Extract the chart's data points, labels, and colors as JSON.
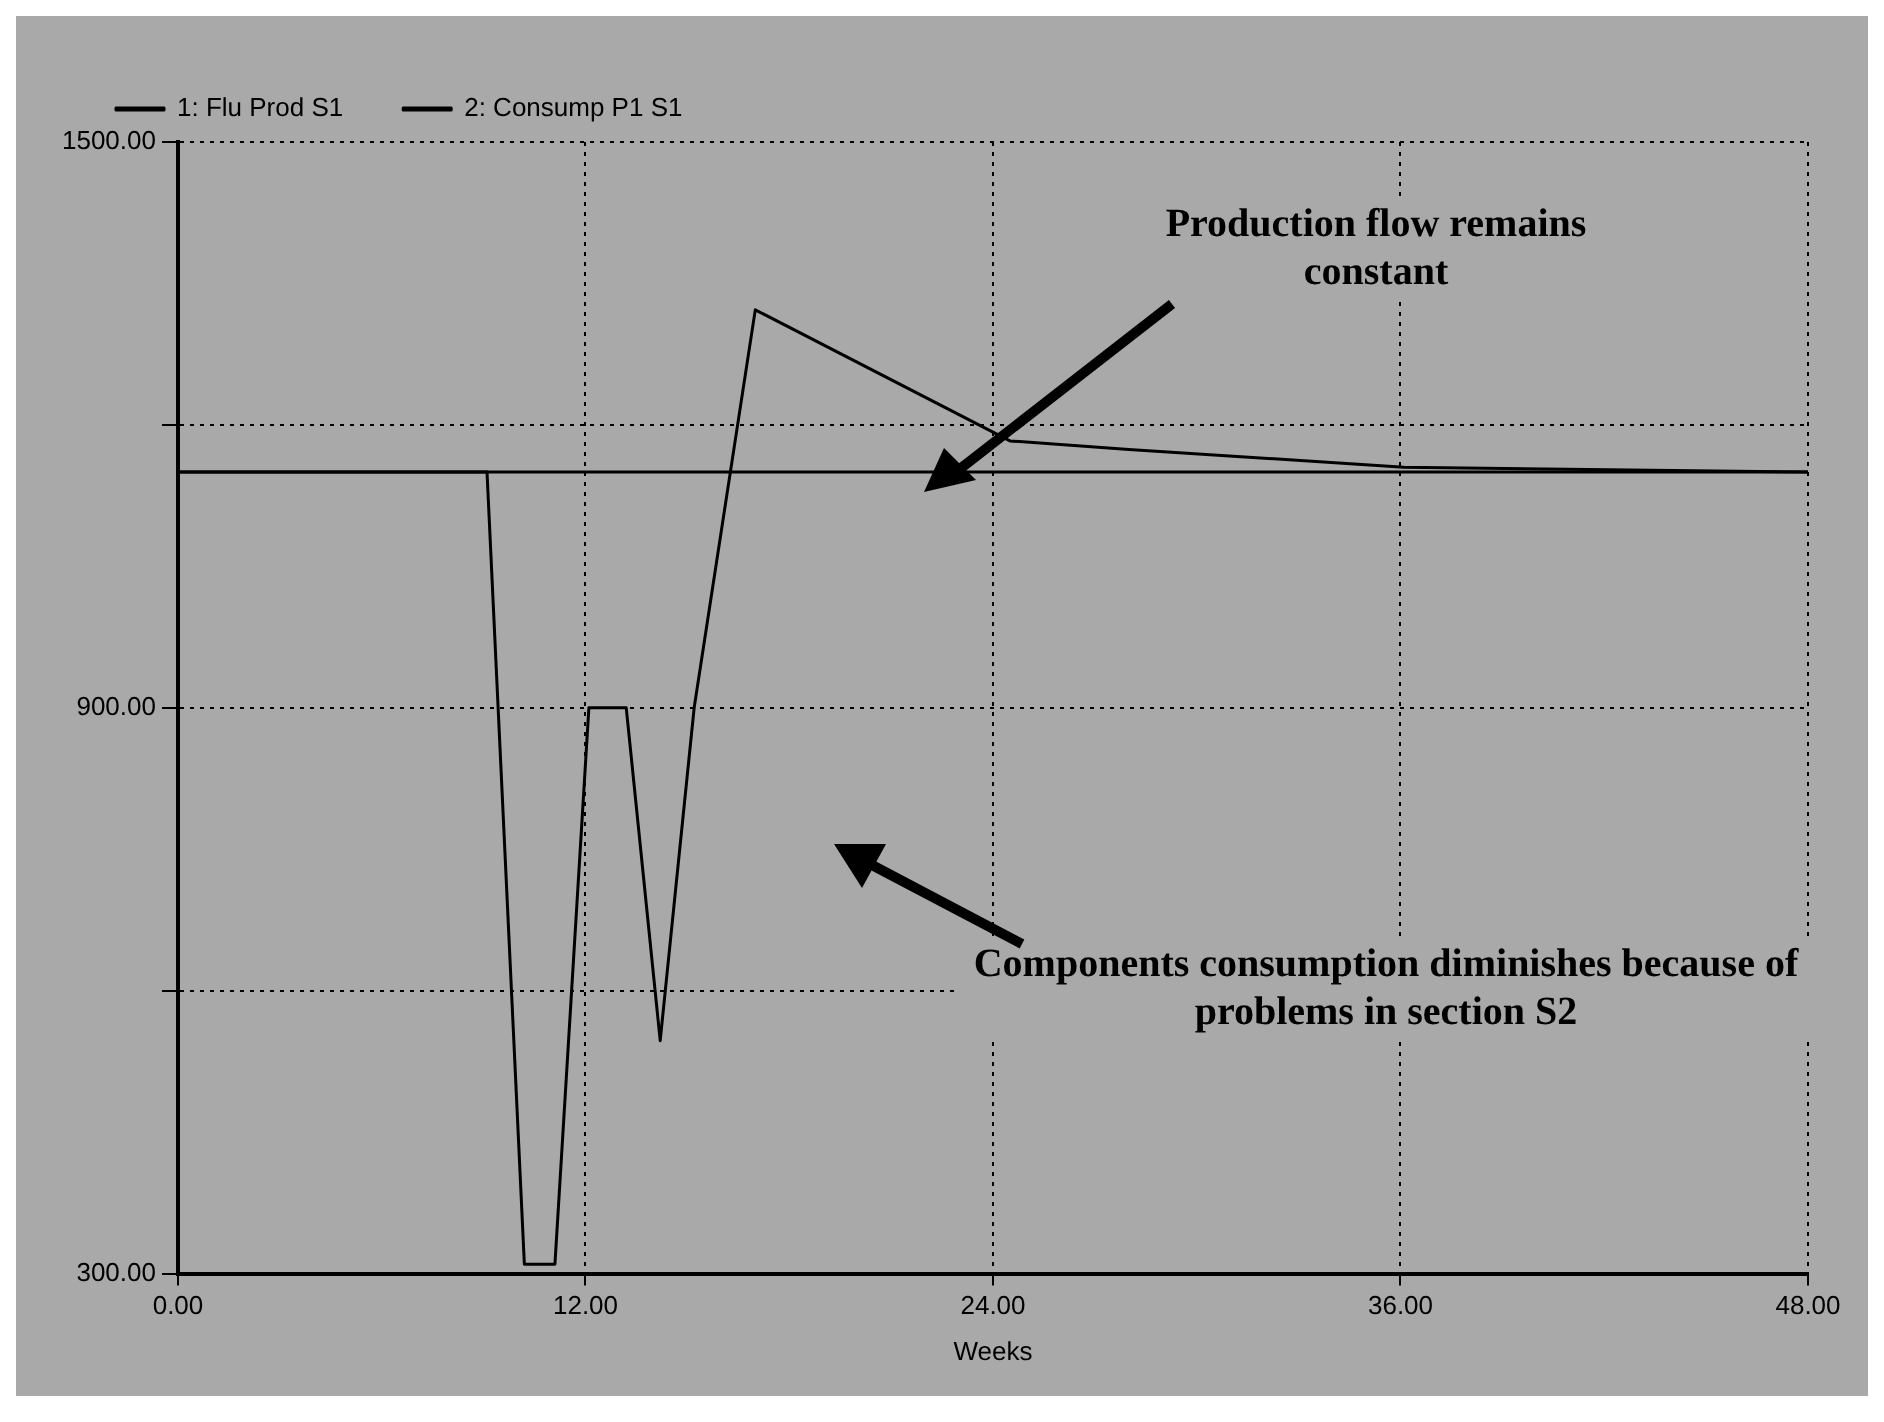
{
  "chart_data": {
    "type": "line",
    "xlabel": "Weeks",
    "annotations": [
      "Production flow remains constant",
      "Components consumption diminishes because of problems in section S2"
    ],
    "xlim": [
      0,
      48
    ],
    "xticks": [
      {
        "value": 0,
        "label": "0.00"
      },
      {
        "value": 12,
        "label": "12.00"
      },
      {
        "value": 24,
        "label": "24.00"
      },
      {
        "value": 36,
        "label": "36.00"
      },
      {
        "value": 48,
        "label": "48.00"
      }
    ],
    "ylim": [
      300,
      1500
    ],
    "yticks": [
      {
        "value": 300,
        "label": "300.00"
      },
      {
        "value": 600,
        "label": null
      },
      {
        "value": 900,
        "label": "900.00"
      },
      {
        "value": 1200,
        "label": null
      },
      {
        "value": 1500,
        "label": "1500.00"
      }
    ],
    "grid": true,
    "legend": "top",
    "marker": "none",
    "line_style": "solid",
    "series": [
      {
        "name": "1: Flu Prod S1",
        "color": "#000000",
        "x": [
          0,
          48
        ],
        "values": [
          1150,
          1150
        ]
      },
      {
        "name": "2: Consump P1 S1",
        "color": "#000000",
        "x": [
          0,
          9.1,
          10.2,
          11.1,
          12.1,
          13.2,
          14.2,
          15.2,
          17.0,
          24.5,
          28,
          36.1,
          48
        ],
        "values": [
          1150,
          1150,
          310,
          310,
          900,
          900,
          547,
          900,
          1322,
          1183,
          1174,
          1155,
          1150
        ]
      }
    ]
  }
}
